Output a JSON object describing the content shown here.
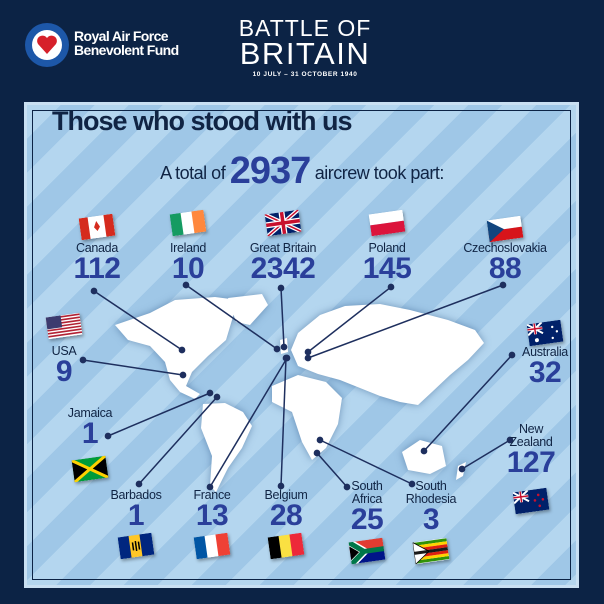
{
  "header": {
    "logo_line1": "Royal Air Force",
    "logo_line2": "Benevolent Fund",
    "event_line1": "BATTLE OF",
    "event_line2": "BRITAIN",
    "dates": "10 JULY – 31 OCTOBER 1940"
  },
  "title": "Those who stood with us",
  "total": {
    "prefix": "A total of",
    "value": "2937",
    "suffix": "aircrew took part:"
  },
  "colors": {
    "background": "#0c2345",
    "number": "#2a3f9a",
    "panel": "#b4d6ef"
  },
  "countries": [
    {
      "name": "Canada",
      "count": "112",
      "flag": "canada-flag"
    },
    {
      "name": "Ireland",
      "count": "10",
      "flag": "ireland-flag"
    },
    {
      "name": "Great Britain",
      "count": "2342",
      "flag": "union-jack-flag"
    },
    {
      "name": "Poland",
      "count": "145",
      "flag": "poland-flag"
    },
    {
      "name": "Czechoslovakia",
      "count": "88",
      "flag": "czechoslovakia-flag"
    },
    {
      "name": "USA",
      "count": "9",
      "flag": "usa-flag"
    },
    {
      "name": "Australia",
      "count": "32",
      "flag": "australia-flag"
    },
    {
      "name": "Jamaica",
      "count": "1",
      "flag": "jamaica-flag"
    },
    {
      "name": "New Zealand",
      "count": "127",
      "flag": "new-zealand-flag"
    },
    {
      "name": "Barbados",
      "count": "1",
      "flag": "barbados-flag"
    },
    {
      "name": "France",
      "count": "13",
      "flag": "france-flag"
    },
    {
      "name": "Belgium",
      "count": "28",
      "flag": "belgium-flag"
    },
    {
      "name": "South Africa",
      "count": "25",
      "flag": "south-africa-flag"
    },
    {
      "name": "South Rhodesia",
      "count": "3",
      "flag": "rhodesia-flag"
    }
  ]
}
